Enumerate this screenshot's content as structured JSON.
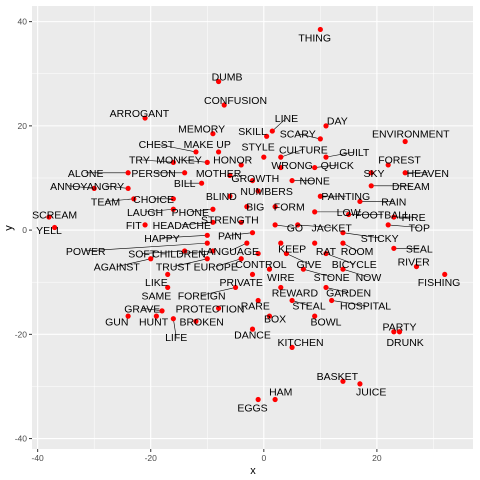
{
  "chart_data": {
    "type": "scatter",
    "title": "",
    "xlabel": "x",
    "ylabel": "y",
    "xlim": [
      -41,
      37
    ],
    "ylim": [
      -42,
      43
    ],
    "xticks": [
      -40,
      -20,
      0,
      20
    ],
    "yticks": [
      -40,
      -20,
      0,
      20,
      40
    ],
    "grid": true,
    "point_color": "#FF0000",
    "panel_color": "#EBEBEB",
    "points": [
      {
        "label": "THING",
        "x": 10,
        "y": 38.5
      },
      {
        "label": "DUMB",
        "x": -8,
        "y": 28.5
      },
      {
        "label": "CONFUSION",
        "x": -7,
        "y": 24
      },
      {
        "label": "ARROGANT",
        "x": -21,
        "y": 21.5
      },
      {
        "label": "LINE",
        "x": 1.5,
        "y": 19
      },
      {
        "label": "DAY",
        "x": 11,
        "y": 20
      },
      {
        "label": "MEMORY",
        "x": -9,
        "y": 18.5
      },
      {
        "label": "SKILL",
        "x": 0.5,
        "y": 18
      },
      {
        "label": "SCARY",
        "x": 10,
        "y": 17.5
      },
      {
        "label": "ENVIRONMENT",
        "x": 25,
        "y": 17
      },
      {
        "label": "CHEST",
        "x": -12,
        "y": 15
      },
      {
        "label": "MAKE UP",
        "x": -8,
        "y": 15
      },
      {
        "label": "STYLE",
        "x": 0,
        "y": 14
      },
      {
        "label": "CULTURE",
        "x": 3,
        "y": 14
      },
      {
        "label": "GUILT",
        "x": 11,
        "y": 14
      },
      {
        "label": "TRY",
        "x": -16,
        "y": 13
      },
      {
        "label": "MONKEY",
        "x": -10,
        "y": 13
      },
      {
        "label": "HONOR",
        "x": -4,
        "y": 12.5
      },
      {
        "label": "FOREST",
        "x": 22,
        "y": 12.5
      },
      {
        "label": "WRONG",
        "x": 3,
        "y": 12
      },
      {
        "label": "QUICK",
        "x": 9,
        "y": 12
      },
      {
        "label": "ALONE",
        "x": -24,
        "y": 11
      },
      {
        "label": "PERSON",
        "x": -14,
        "y": 11
      },
      {
        "label": "MOTHER",
        "x": -6,
        "y": 10.5
      },
      {
        "label": "SKY",
        "x": 19,
        "y": 11
      },
      {
        "label": "HEAVEN",
        "x": 25,
        "y": 11
      },
      {
        "label": "GROWTH",
        "x": -2,
        "y": 9.5
      },
      {
        "label": "NONE",
        "x": 5,
        "y": 9.5
      },
      {
        "label": "BILL",
        "x": -11,
        "y": 9
      },
      {
        "label": "ANNOY",
        "x": -30,
        "y": 8
      },
      {
        "label": "ANGRY",
        "x": -24,
        "y": 8
      },
      {
        "label": "DREAM",
        "x": 19,
        "y": 8.5
      },
      {
        "label": "NUMBERS",
        "x": -1,
        "y": 7.5
      },
      {
        "label": "BLIND",
        "x": -6,
        "y": 6.5
      },
      {
        "label": "PAINTING",
        "x": 10,
        "y": 6.5
      },
      {
        "label": "TEAM",
        "x": -23,
        "y": 6
      },
      {
        "label": "CHOICE",
        "x": -16,
        "y": 6
      },
      {
        "label": "BIG",
        "x": -3,
        "y": 4.5
      },
      {
        "label": "FORM",
        "x": 2,
        "y": 4.5
      },
      {
        "label": "RAIN",
        "x": 17,
        "y": 5.5
      },
      {
        "label": "LAUGH",
        "x": -16,
        "y": 4
      },
      {
        "label": "PHONE",
        "x": -9,
        "y": 4
      },
      {
        "label": "LOW",
        "x": 9,
        "y": 3.5
      },
      {
        "label": "FOOTBALL",
        "x": 15,
        "y": 3
      },
      {
        "label": "SCREAM",
        "x": -38,
        "y": 2.5
      },
      {
        "label": "FIRE",
        "x": 23,
        "y": 2.5
      },
      {
        "label": "STRENGTH",
        "x": -4,
        "y": 1.5
      },
      {
        "label": "HEADACHE",
        "x": -9,
        "y": 1.5
      },
      {
        "label": "FIT",
        "x": -21,
        "y": 1
      },
      {
        "label": "GO",
        "x": 2,
        "y": 1
      },
      {
        "label": "JACKET",
        "x": 6,
        "y": 1
      },
      {
        "label": "YELL",
        "x": -37,
        "y": 0.5
      },
      {
        "label": "TOP",
        "x": 22,
        "y": 1
      },
      {
        "label": "PAIN",
        "x": -2,
        "y": -0.5
      },
      {
        "label": "HAPPY",
        "x": -10,
        "y": -1
      },
      {
        "label": "STICKY",
        "x": 14,
        "y": -0.5
      },
      {
        "label": "POWER",
        "x": -10,
        "y": -2.5
      },
      {
        "label": "LANGUAGE",
        "x": -3,
        "y": -2.5
      },
      {
        "label": "KEEP",
        "x": 3,
        "y": -2.5
      },
      {
        "label": "RAT",
        "x": 9,
        "y": -2.5
      },
      {
        "label": "ROOM",
        "x": 14,
        "y": -2.5
      },
      {
        "label": "SEAL",
        "x": 23,
        "y": -3.5
      },
      {
        "label": "SOFT",
        "x": -14,
        "y": -4
      },
      {
        "label": "CHILDREN",
        "x": -9,
        "y": -4
      },
      {
        "label": "CONTROL",
        "x": -1,
        "y": -4.5
      },
      {
        "label": "GIVE",
        "x": 4,
        "y": -4.5
      },
      {
        "label": "BICYCLE",
        "x": 11,
        "y": -4.5
      },
      {
        "label": "AGAINST",
        "x": -20,
        "y": -5.5
      },
      {
        "label": "TRUST",
        "x": -10,
        "y": -5.5
      },
      {
        "label": "EUROPE",
        "x": -4,
        "y": -5.5
      },
      {
        "label": "RIVER",
        "x": 27,
        "y": -7
      },
      {
        "label": "WIRE",
        "x": 1,
        "y": -7.5
      },
      {
        "label": "STONE",
        "x": 7,
        "y": -7.5
      },
      {
        "label": "NOW",
        "x": 14,
        "y": -7.5
      },
      {
        "label": "LIKE",
        "x": -17,
        "y": -8.5
      },
      {
        "label": "PRIVATE",
        "x": -2,
        "y": -8.5
      },
      {
        "label": "FISHING",
        "x": 32,
        "y": -8.5
      },
      {
        "label": "SAME",
        "x": -17,
        "y": -11
      },
      {
        "label": "FOREIGN",
        "x": -5,
        "y": -11
      },
      {
        "label": "REWARD",
        "x": 3,
        "y": -11
      },
      {
        "label": "GARDEN",
        "x": 11,
        "y": -11
      },
      {
        "label": "RARE",
        "x": -1,
        "y": -13.5
      },
      {
        "label": "STEAL",
        "x": 5,
        "y": -13.5
      },
      {
        "label": "HOSPITAL",
        "x": 12,
        "y": -13.5
      },
      {
        "label": "GRAVE",
        "x": -18,
        "y": -15.5
      },
      {
        "label": "PROTECTION",
        "x": -8,
        "y": -15
      },
      {
        "label": "GUN",
        "x": -24,
        "y": -16.5
      },
      {
        "label": "HUNT",
        "x": -19,
        "y": -16.5
      },
      {
        "label": "BOX",
        "x": 1,
        "y": -16.5
      },
      {
        "label": "BOWL",
        "x": 9,
        "y": -16.5
      },
      {
        "label": "BROKEN",
        "x": -12,
        "y": -17.5
      },
      {
        "label": "LIFE",
        "x": -16,
        "y": -17
      },
      {
        "label": "DANCE",
        "x": -2,
        "y": -19
      },
      {
        "label": "PARTY",
        "x": 23,
        "y": -19.5
      },
      {
        "label": "KITCHEN",
        "x": 5,
        "y": -22.5
      },
      {
        "label": "DRUNK",
        "x": 24,
        "y": -19.5
      },
      {
        "label": "BASKET",
        "x": 14,
        "y": -29
      },
      {
        "label": "JUICE",
        "x": 17,
        "y": -29.5
      },
      {
        "label": "HAM",
        "x": 2,
        "y": -32.5
      },
      {
        "label": "EGGS",
        "x": -1,
        "y": -32.5
      }
    ],
    "labels": [
      {
        "text": "THING",
        "x": 9,
        "y": 37
      },
      {
        "text": "DUMB",
        "x": -6.5,
        "y": 29.5
      },
      {
        "text": "CONFUSION",
        "x": -5,
        "y": 25
      },
      {
        "text": "ARROGANT",
        "x": -22,
        "y": 22.5
      },
      {
        "text": "LINE",
        "x": 4,
        "y": 21.5
      },
      {
        "text": "DAY",
        "x": 13,
        "y": 21
      },
      {
        "text": "MEMORY",
        "x": -11,
        "y": 19.5
      },
      {
        "text": "SKILL",
        "x": -2,
        "y": 19
      },
      {
        "text": "SCARY",
        "x": 6,
        "y": 18.5
      },
      {
        "text": "ENVIRONMENT",
        "x": 26,
        "y": 18.5
      },
      {
        "text": "CHEST",
        "x": -19,
        "y": 16.5
      },
      {
        "text": "MAKE UP",
        "x": -10,
        "y": 16.5
      },
      {
        "text": "STYLE",
        "x": -1,
        "y": 16
      },
      {
        "text": "CULTURE",
        "x": 7,
        "y": 15.5
      },
      {
        "text": "GUILT",
        "x": 16,
        "y": 15
      },
      {
        "text": "TRY",
        "x": -22,
        "y": 13.5
      },
      {
        "text": "MONKEY",
        "x": -15,
        "y": 13.5
      },
      {
        "text": "HONOR",
        "x": -5.5,
        "y": 13.5
      },
      {
        "text": "FOREST",
        "x": 24,
        "y": 13.5
      },
      {
        "text": "WRONG",
        "x": 5,
        "y": 12.5
      },
      {
        "text": "QUICK",
        "x": 13,
        "y": 12.5
      },
      {
        "text": "ALONE",
        "x": -31.5,
        "y": 11
      },
      {
        "text": "PERSON",
        "x": -19.5,
        "y": 11
      },
      {
        "text": "MOTHER",
        "x": -8,
        "y": 11
      },
      {
        "text": "SKY",
        "x": 19.5,
        "y": 11
      },
      {
        "text": "HEAVEN",
        "x": 29,
        "y": 11
      },
      {
        "text": "GROWTH",
        "x": -1.5,
        "y": 10
      },
      {
        "text": "NONE",
        "x": 9,
        "y": 9.5
      },
      {
        "text": "BILL",
        "x": -14,
        "y": 9
      },
      {
        "text": "ANNOY",
        "x": -34.5,
        "y": 8.5
      },
      {
        "text": "ANGRY",
        "x": -28,
        "y": 8.5
      },
      {
        "text": "DREAM",
        "x": 26,
        "y": 8.5
      },
      {
        "text": "NUMBERS",
        "x": 0.5,
        "y": 7.5
      },
      {
        "text": "BLIND",
        "x": -7.5,
        "y": 6.5
      },
      {
        "text": "PAINTING",
        "x": 14.5,
        "y": 6.5
      },
      {
        "text": "TEAM",
        "x": -28,
        "y": 5.5
      },
      {
        "text": "CHOICE",
        "x": -19.5,
        "y": 6
      },
      {
        "text": "BIG",
        "x": -1.5,
        "y": 4.5
      },
      {
        "text": "FORM",
        "x": 4.5,
        "y": 4.5
      },
      {
        "text": "RAIN",
        "x": 23,
        "y": 5.5
      },
      {
        "text": "LAUGH",
        "x": -21,
        "y": 3.5
      },
      {
        "text": "PHONE",
        "x": -13,
        "y": 3.5
      },
      {
        "text": "LOW",
        "x": 15,
        "y": 3.5
      },
      {
        "text": "FOOTBALL",
        "x": 21,
        "y": 3
      },
      {
        "text": "SCREAM",
        "x": -37,
        "y": 3
      },
      {
        "text": "FIRE",
        "x": 26.5,
        "y": 2.5
      },
      {
        "text": "STRENGTH",
        "x": -6,
        "y": 2
      },
      {
        "text": "HEADACHE",
        "x": -14.5,
        "y": 1
      },
      {
        "text": "FIT",
        "x": -23,
        "y": 1
      },
      {
        "text": "GO",
        "x": 5.5,
        "y": 0.5
      },
      {
        "text": "JACKET",
        "x": 12,
        "y": 0.5
      },
      {
        "text": "YELL",
        "x": -38,
        "y": 0
      },
      {
        "text": "TOP",
        "x": 27.5,
        "y": 0.5
      },
      {
        "text": "PAIN",
        "x": -6,
        "y": -1
      },
      {
        "text": "HAPPY",
        "x": -18,
        "y": -1.5
      },
      {
        "text": "STICKY",
        "x": 20.5,
        "y": -1.5
      },
      {
        "text": "POWER",
        "x": -31.5,
        "y": -4
      },
      {
        "text": "LANGUAGE",
        "x": -6,
        "y": -4
      },
      {
        "text": "KEEP",
        "x": 5,
        "y": -3.5
      },
      {
        "text": "RAT",
        "x": 11,
        "y": -4
      },
      {
        "text": "ROOM",
        "x": 16.5,
        "y": -4
      },
      {
        "text": "SEAL",
        "x": 27.5,
        "y": -3.5
      },
      {
        "text": "SOFT",
        "x": -21.5,
        "y": -4.5
      },
      {
        "text": "CHILDREN",
        "x": -15,
        "y": -4.5
      },
      {
        "text": "CONTROL",
        "x": -0.5,
        "y": -6.5
      },
      {
        "text": "GIVE",
        "x": 8,
        "y": -6.5
      },
      {
        "text": "BICYCLE",
        "x": 16,
        "y": -6.5
      },
      {
        "text": "AGAINST",
        "x": -26,
        "y": -7
      },
      {
        "text": "TRUST",
        "x": -16,
        "y": -7
      },
      {
        "text": "EUROPE",
        "x": -8.5,
        "y": -7
      },
      {
        "text": "RIVER",
        "x": 26.5,
        "y": -6
      },
      {
        "text": "WIRE",
        "x": 3,
        "y": -9
      },
      {
        "text": "STONE",
        "x": 12,
        "y": -9
      },
      {
        "text": "NOW",
        "x": 18.5,
        "y": -9
      },
      {
        "text": "LIKE",
        "x": -19,
        "y": -10
      },
      {
        "text": "PRIVATE",
        "x": -4,
        "y": -10
      },
      {
        "text": "FISHING",
        "x": 31,
        "y": -10
      },
      {
        "text": "SAME",
        "x": -19,
        "y": -12.5
      },
      {
        "text": "FOREIGN",
        "x": -11,
        "y": -12.5
      },
      {
        "text": "REWARD",
        "x": 5.5,
        "y": -12
      },
      {
        "text": "GARDEN",
        "x": 15,
        "y": -12
      },
      {
        "text": "RARE",
        "x": -1.5,
        "y": -14.5
      },
      {
        "text": "STEAL",
        "x": 8,
        "y": -14.5
      },
      {
        "text": "HOSPITAL",
        "x": 18,
        "y": -14.5
      },
      {
        "text": "GRAVE",
        "x": -21.5,
        "y": -15
      },
      {
        "text": "PROTECTION",
        "x": -9.5,
        "y": -15
      },
      {
        "text": "GUN",
        "x": -26,
        "y": -17.5
      },
      {
        "text": "HUNT",
        "x": -19.5,
        "y": -17.5
      },
      {
        "text": "BOX",
        "x": 2,
        "y": -17
      },
      {
        "text": "BOWL",
        "x": 11,
        "y": -17.5
      },
      {
        "text": "BROKEN",
        "x": -11,
        "y": -17.5
      },
      {
        "text": "LIFE",
        "x": -15.5,
        "y": -20.5
      },
      {
        "text": "DANCE",
        "x": -2,
        "y": -20
      },
      {
        "text": "PARTY",
        "x": 24,
        "y": -18.5
      },
      {
        "text": "KITCHEN",
        "x": 6.5,
        "y": -21.5
      },
      {
        "text": "DRUNK",
        "x": 25,
        "y": -21.5
      },
      {
        "text": "BASKET",
        "x": 13,
        "y": -28
      },
      {
        "text": "JUICE",
        "x": 19,
        "y": -31
      },
      {
        "text": "HAM",
        "x": 3,
        "y": -31
      },
      {
        "text": "EGGS",
        "x": -2,
        "y": -34
      }
    ]
  }
}
